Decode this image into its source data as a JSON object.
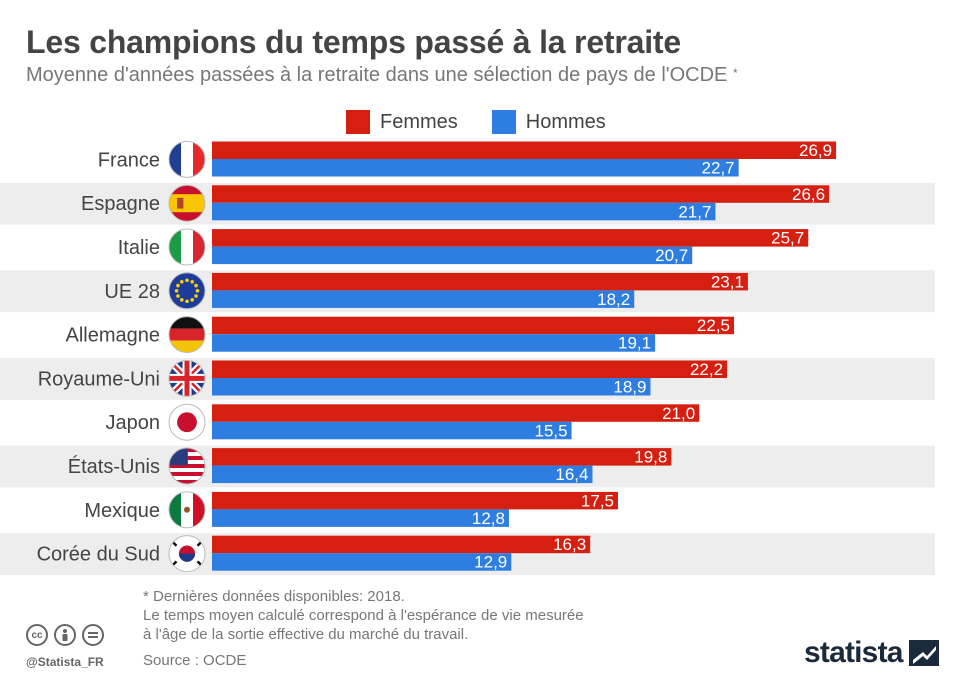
{
  "header": {
    "title": "Les champions du temps passé à la retraite",
    "subtitle": "Moyenne d'années passées à la retraite dans une sélection de pays de l'OCDE",
    "subtitle_mark": "*"
  },
  "colors": {
    "femmes": "#d41f11",
    "hommes": "#2e7de0",
    "band": "#ededed"
  },
  "chart_data": {
    "type": "bar",
    "orientation": "horizontal",
    "categories": [
      "France",
      "Espagne",
      "Italie",
      "UE 28",
      "Allemagne",
      "Royaume-Uni",
      "Japon",
      "États-Unis",
      "Mexique",
      "Corée du Sud"
    ],
    "series": [
      {
        "name": "Femmes",
        "values": [
          26.9,
          26.6,
          25.7,
          23.1,
          22.5,
          22.2,
          21.0,
          19.8,
          17.5,
          16.3
        ],
        "labels": [
          "26,9",
          "26,6",
          "25,7",
          "23,1",
          "22,5",
          "22,2",
          "21,0",
          "19,8",
          "17,5",
          "16,3"
        ]
      },
      {
        "name": "Hommes",
        "values": [
          22.7,
          21.7,
          20.7,
          18.2,
          19.1,
          18.9,
          15.5,
          16.4,
          12.8,
          12.9
        ],
        "labels": [
          "22,7",
          "21,7",
          "20,7",
          "18,2",
          "19,1",
          "18,9",
          "15,5",
          "16,4",
          "12,8",
          "12,9"
        ]
      }
    ],
    "legend_position": "top",
    "grid": false,
    "xlim": [
      0,
      30
    ]
  },
  "flags": [
    "france-flag-icon",
    "spain-flag-icon",
    "italy-flag-icon",
    "eu-flag-icon",
    "germany-flag-icon",
    "uk-flag-icon",
    "japan-flag-icon",
    "usa-flag-icon",
    "mexico-flag-icon",
    "south-korea-flag-icon"
  ],
  "footer": {
    "note_line1": "* Dernières données disponibles: 2018.",
    "note_line2": "Le temps moyen calculé correspond à l'espérance de vie mesurée",
    "note_line3": "à l'âge de la sortie effective du marché du travail.",
    "source": "Source : OCDE",
    "handle": "@Statista_FR",
    "brand": "statista"
  }
}
